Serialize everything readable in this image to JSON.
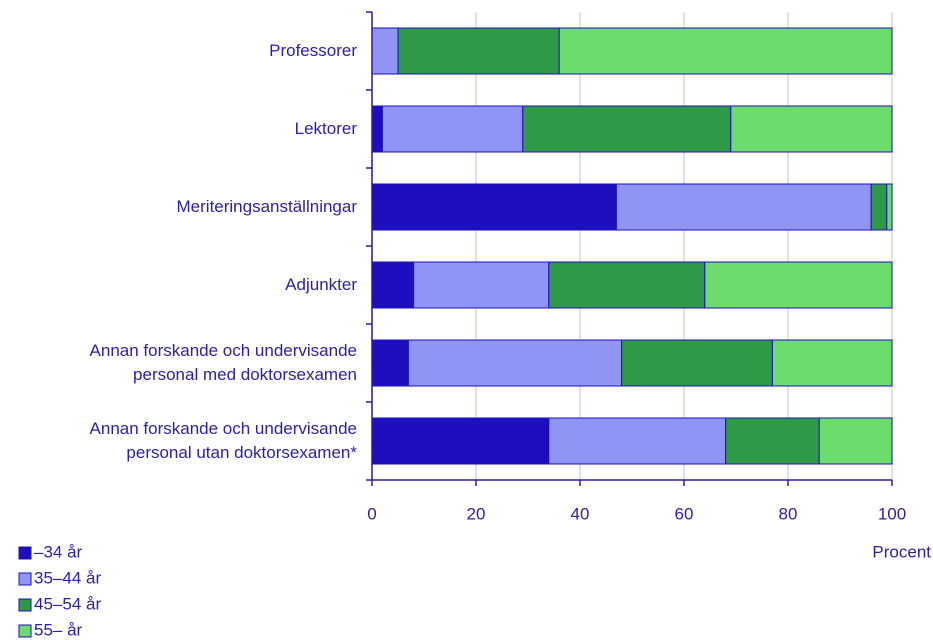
{
  "chart_data": {
    "type": "stacked-bar-horizontal",
    "categories": [
      "Professorer",
      "Lektorer",
      "Meriteringsanställningar",
      "Adjunkter",
      "Annan forskande och undervisande personal med doktorsexamen",
      "Annan forskande och undervisande personal utan doktorsexamen*"
    ],
    "series": [
      {
        "name": "–34 år",
        "color": "#1e0fbe",
        "values": [
          0,
          2,
          47,
          8,
          7,
          34
        ]
      },
      {
        "name": "35–44 år",
        "color": "#8f94f5",
        "values": [
          5,
          27,
          49,
          26,
          41,
          34
        ]
      },
      {
        "name": "45–54 år",
        "color": "#2e9a47",
        "values": [
          31,
          40,
          3,
          30,
          29,
          18
        ]
      },
      {
        "name": "55– år",
        "color": "#6cdc6c",
        "values": [
          64,
          31,
          1,
          36,
          23,
          14
        ]
      }
    ],
    "xlabel": "Procent",
    "xlim": [
      0,
      100
    ],
    "xticks": [
      0,
      20,
      40,
      60,
      80,
      100
    ],
    "grid": true
  }
}
